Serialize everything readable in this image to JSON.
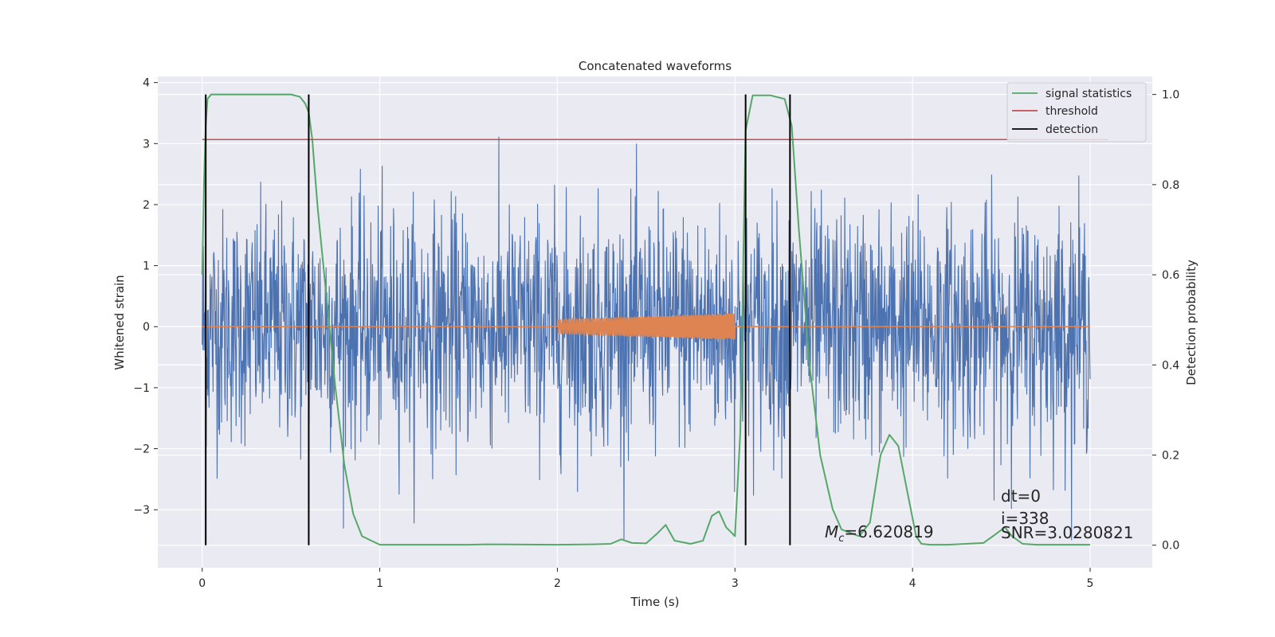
{
  "chart_data": {
    "type": "line",
    "title": "Concatenated waveforms",
    "xlabel": "Time (s)",
    "ylabel_left": "Whitened strain",
    "ylabel_right": "Detection probability",
    "xlim": [
      -0.25,
      5.35
    ],
    "ylim_left": [
      -3.95,
      4.1
    ],
    "ylim_right": [
      -0.05,
      1.04
    ],
    "x_ticks": [
      "0",
      "1",
      "2",
      "3",
      "4",
      "5"
    ],
    "y_left_ticks": [
      "−3",
      "−2",
      "−1",
      "0",
      "1",
      "2",
      "3",
      "4"
    ],
    "y_right_ticks": [
      "0.0",
      "0.2",
      "0.4",
      "0.6",
      "0.8",
      "1.0"
    ],
    "grid": true,
    "legend_position": "top-right",
    "legend": [
      "signal statistics",
      "threshold",
      "detection"
    ],
    "colors": {
      "noise": "#4c72b0",
      "template": "#dd8452",
      "signal_statistics": "#55a868",
      "threshold": "#c44e52",
      "detection": "#000000",
      "background": "#eaeaf2"
    },
    "series": [
      {
        "name": "signal statistics",
        "axis": "right",
        "x": [
          0.0,
          0.01,
          0.02,
          0.03,
          0.05,
          0.1,
          0.5,
          0.55,
          0.58,
          0.6,
          0.62,
          0.65,
          0.7,
          0.75,
          0.8,
          0.85,
          0.9,
          1.0,
          1.5,
          1.6,
          2.0,
          2.2,
          2.3,
          2.36,
          2.42,
          2.5,
          2.56,
          2.61,
          2.66,
          2.75,
          2.82,
          2.87,
          2.91,
          2.95,
          3.0,
          3.03,
          3.06,
          3.1,
          3.2,
          3.28,
          3.32,
          3.36,
          3.42,
          3.48,
          3.55,
          3.6,
          3.7,
          3.76,
          3.82,
          3.87,
          3.92,
          3.98,
          4.02,
          4.05,
          4.1,
          4.2,
          4.4,
          4.47,
          4.52,
          4.56,
          4.62,
          4.7,
          5.0
        ],
        "y": [
          0.6,
          0.8,
          0.93,
          0.99,
          1.0,
          1.0,
          1.0,
          0.995,
          0.98,
          0.96,
          0.9,
          0.75,
          0.55,
          0.35,
          0.18,
          0.07,
          0.02,
          0.001,
          0.001,
          0.002,
          0.001,
          0.002,
          0.003,
          0.013,
          0.005,
          0.004,
          0.025,
          0.045,
          0.01,
          0.003,
          0.01,
          0.065,
          0.075,
          0.04,
          0.02,
          0.25,
          0.92,
          0.998,
          0.998,
          0.99,
          0.93,
          0.7,
          0.4,
          0.2,
          0.08,
          0.035,
          0.02,
          0.05,
          0.2,
          0.245,
          0.22,
          0.1,
          0.02,
          0.003,
          0.001,
          0.001,
          0.005,
          0.025,
          0.04,
          0.02,
          0.003,
          0.001,
          0.001
        ]
      },
      {
        "name": "threshold",
        "axis": "right",
        "x": [
          0.0,
          5.1
        ],
        "y": [
          0.9,
          0.9
        ]
      },
      {
        "name": "detection",
        "axis": "right",
        "type": "vlines",
        "x": [
          0.02,
          0.6,
          3.06,
          3.31
        ],
        "y_range": [
          0.0,
          1.0
        ]
      },
      {
        "axis": "left",
        "type": "noise",
        "x_range": [
          0.0,
          5.0
        ],
        "amplitude": 3.5
      },
      {
        "axis": "left",
        "type": "chirp",
        "x_range": [
          2.0,
          3.0
        ],
        "y_start": 0.12,
        "y_end": 0.22,
        "flat_value": 0
      }
    ],
    "annotations": {
      "mc_symbol": "M",
      "mc_subscript": "c",
      "mc_value": "=6.620819",
      "dt": "dt=0",
      "i": "i=338",
      "snr": "SNR=3.0280821"
    }
  }
}
